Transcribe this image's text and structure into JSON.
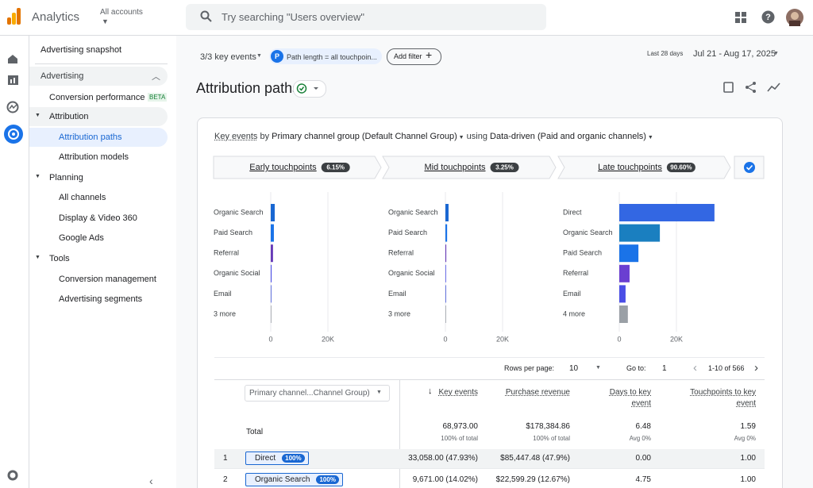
{
  "header": {
    "product": "Analytics",
    "account": "All accounts",
    "search_placeholder": "Try searching \"Users overview\""
  },
  "sidebar": {
    "snapshot": "Advertising snapshot",
    "section": "Advertising",
    "top_item": {
      "label": "Conversion performance",
      "badge": "BETA"
    },
    "groups": [
      {
        "label": "Attribution",
        "items": [
          "Attribution paths",
          "Attribution models"
        ]
      },
      {
        "label": "Planning",
        "items": [
          "All channels",
          "Display & Video 360",
          "Google Ads"
        ]
      },
      {
        "label": "Tools",
        "items": [
          "Conversion management",
          "Advertising segments"
        ]
      }
    ]
  },
  "toolbar": {
    "key_events": "3/3 key events",
    "filter_icon": "P",
    "filter": "Path length = all touchpoin...",
    "add_filter": "Add filter",
    "date_label": "Last 28 days",
    "date_range": "Jul 21 - Aug 17, 2025"
  },
  "page_title": "Attribution paths",
  "description": {
    "metric": "Key events",
    "by": "by",
    "dimension": "Primary channel group (Default Channel Group)",
    "using": "using",
    "model": "Data-driven (Paid and organic channels)"
  },
  "touchpoints": [
    {
      "label": "Early touchpoints",
      "share": "6.15%",
      "categories": [
        "Organic Search",
        "Paid Search",
        "Referral",
        "Organic Social",
        "Email",
        "3 more"
      ],
      "values": [
        1400,
        1100,
        800,
        300,
        200,
        100
      ],
      "colors": [
        "#1967d2",
        "#1a73e8",
        "#673ab7",
        "#4a4ee6",
        "#3f51d6",
        "#9aa0a6"
      ],
      "xlim": [
        0,
        20000
      ],
      "xticks": [
        0,
        {
          "value": 20000,
          "label": "20K"
        }
      ]
    },
    {
      "label": "Mid touchpoints",
      "share": "3.25%",
      "categories": [
        "Organic Search",
        "Paid Search",
        "Referral",
        "Organic Social",
        "Email",
        "3 more"
      ],
      "values": [
        1100,
        600,
        300,
        200,
        150,
        100
      ],
      "colors": [
        "#1967d2",
        "#1a73e8",
        "#673ab7",
        "#4a4ee6",
        "#3f51d6",
        "#9aa0a6"
      ],
      "xlim": [
        0,
        20000
      ],
      "xticks": [
        0,
        {
          "value": 20000,
          "label": "20K"
        }
      ]
    },
    {
      "label": "Late touchpoints",
      "share": "90.60%",
      "categories": [
        "Direct",
        "Organic Search",
        "Paid Search",
        "Referral",
        "Email",
        "4 more"
      ],
      "values": [
        33300,
        14200,
        6700,
        3600,
        2200,
        3000
      ],
      "colors": [
        "#3367e3",
        "#1a7fc0",
        "#1a73e8",
        "#6a3fd1",
        "#4a4ee6",
        "#9aa0a6"
      ],
      "xlim": [
        0,
        20000
      ],
      "xticks": [
        0,
        {
          "value": 20000,
          "label": "20K"
        }
      ]
    }
  ],
  "table": {
    "rows_per_page_label": "Rows per page:",
    "rows_per_page": "10",
    "goto_label": "Go to:",
    "goto": "1",
    "pagination": "1-10 of 566",
    "dimension": "Primary channel...Channel Group)",
    "columns": [
      "Key events",
      "Purchase revenue",
      "Days to key event",
      "Touchpoints to key event"
    ],
    "total": {
      "label": "Total",
      "values": [
        "68,973.00",
        "$178,384.86",
        "6.48",
        "1.59"
      ],
      "subs": [
        "100% of total",
        "100% of total",
        "Avg 0%",
        "Avg 0%"
      ]
    },
    "rows": [
      {
        "index": "1",
        "channel": "Direct",
        "share": "100%",
        "cells": [
          "33,058.00 (47.93%)",
          "$85,447.48 (47.9%)",
          "0.00",
          "1.00"
        ]
      },
      {
        "index": "2",
        "channel": "Organic Search",
        "share": "100%",
        "cells": [
          "9,671.00 (14.02%)",
          "$22,599.29 (12.67%)",
          "4.75",
          "1.00"
        ]
      }
    ]
  }
}
